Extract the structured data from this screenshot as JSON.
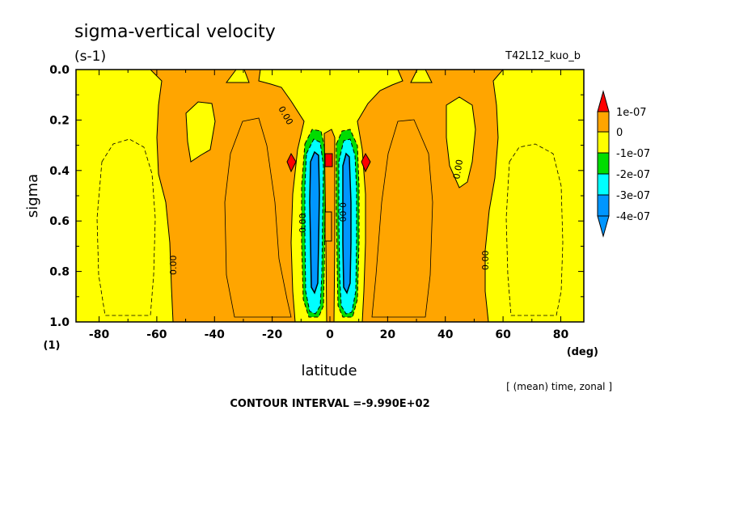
{
  "chart_data": {
    "type": "heatmap",
    "title": "sigma-vertical velocity",
    "units": "(s-1)",
    "run_label": "T42L12_kuo_b",
    "xlabel": "latitude",
    "x_units": "(deg)",
    "ylabel": "sigma",
    "y_units": "(1)",
    "xlim": [
      -88,
      88
    ],
    "ylim": [
      0.0,
      1.0
    ],
    "y_inverted": true,
    "x_ticks": [
      "-80",
      "-60",
      "-40",
      "-20",
      "0",
      "20",
      "40",
      "60",
      "80"
    ],
    "y_ticks": [
      "0.0",
      "0.2",
      "0.4",
      "0.6",
      "0.8",
      "1.0"
    ],
    "average_note": "[ (mean) time, zonal ]",
    "contour_interval": "CONTOUR INTERVAL =-9.990E+02",
    "contour_labels": [
      "0.00",
      "0.00",
      "0.00",
      "0.00",
      "0.00",
      "0.00"
    ],
    "colorbar": {
      "labels": [
        "1e-07",
        "0",
        "-1e-07",
        "-2e-07",
        "-3e-07",
        "-4e-07"
      ],
      "colors": {
        "gt_1e-07": "#ff0000",
        "0_to_1e-07": "#ffa500",
        "-1e-07_to_0": "#ffff00",
        "-2e-07_to_-1e-07": "#00dd00",
        "-3e-07_to_-2e-07": "#00ffff",
        "lt_-3e-07": "#0096ff"
      }
    },
    "regions": [
      {
        "level": "0_to_1e-07",
        "lat_range": [
          -56,
          -20
        ],
        "sigma_range": [
          0.0,
          1.0
        ]
      },
      {
        "level": "0_to_1e-07",
        "lat_range": [
          20,
          56
        ],
        "sigma_range": [
          0.0,
          1.0
        ]
      },
      {
        "level": "-1e-07_to_0",
        "lat_range": [
          -88,
          -56
        ],
        "sigma_range": [
          0.0,
          1.0
        ]
      },
      {
        "level": "-1e-07_to_0",
        "lat_range": [
          56,
          88
        ],
        "sigma_range": [
          0.0,
          1.0
        ]
      },
      {
        "level": "-1e-07_to_0",
        "lat_range": [
          -20,
          20
        ],
        "sigma_range": [
          0.0,
          0.25
        ]
      },
      {
        "level": "lt_-3e-07",
        "lat_range": [
          -10,
          -4
        ],
        "sigma_range": [
          0.28,
          0.95
        ]
      },
      {
        "level": "lt_-3e-07",
        "lat_range": [
          4,
          10
        ],
        "sigma_range": [
          0.28,
          0.95
        ]
      },
      {
        "level": "gt_1e-07",
        "lat_range": [
          -1,
          2
        ],
        "sigma_range": [
          0.33,
          0.38
        ]
      },
      {
        "level": "gt_1e-07",
        "lat_range": [
          -13,
          -11
        ],
        "sigma_range": [
          0.33,
          0.4
        ]
      },
      {
        "level": "gt_1e-07",
        "lat_range": [
          11,
          13
        ],
        "sigma_range": [
          0.33,
          0.4
        ]
      }
    ]
  }
}
